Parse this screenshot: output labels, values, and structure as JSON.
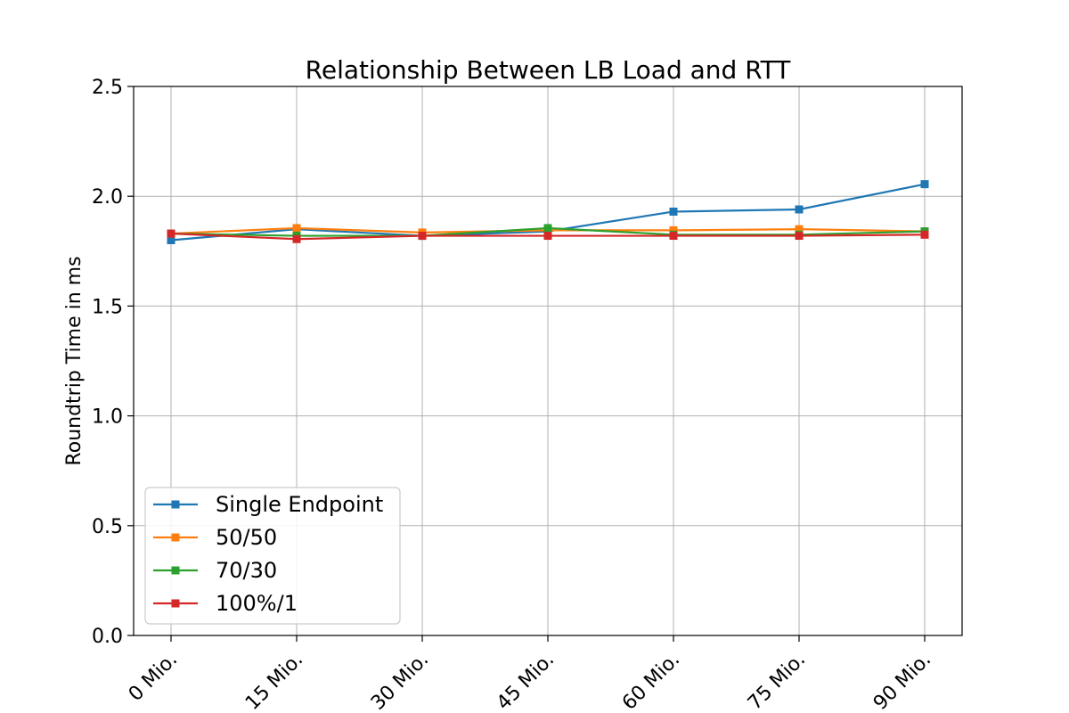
{
  "chart_data": {
    "type": "line",
    "title": "Relationship Between LB Load and RTT",
    "xlabel": "",
    "ylabel": "Roundtrip Time in ms",
    "categories": [
      "0 Mio.",
      "15 Mio.",
      "30 Mio.",
      "45 Mio.",
      "60 Mio.",
      "75 Mio.",
      "90 Mio."
    ],
    "ylim": [
      0.0,
      2.5
    ],
    "yticks": [
      "0.0",
      "0.5",
      "1.0",
      "1.5",
      "2.0",
      "2.5"
    ],
    "grid": true,
    "legend_position": "lower-left",
    "marker": "square",
    "series": [
      {
        "name": "Single Endpoint",
        "color": "#1f77b4",
        "values": [
          1.8,
          1.85,
          1.82,
          1.84,
          1.93,
          1.94,
          2.055
        ]
      },
      {
        "name": "50/50",
        "color": "#ff7f0e",
        "values": [
          1.83,
          1.855,
          1.835,
          1.845,
          1.845,
          1.85,
          1.84
        ]
      },
      {
        "name": "70/30",
        "color": "#2ca02c",
        "values": [
          1.83,
          1.82,
          1.82,
          1.855,
          1.825,
          1.825,
          1.84
        ]
      },
      {
        "name": "100%/1",
        "color": "#d62728",
        "values": [
          1.83,
          1.805,
          1.82,
          1.82,
          1.82,
          1.82,
          1.825
        ]
      }
    ]
  }
}
